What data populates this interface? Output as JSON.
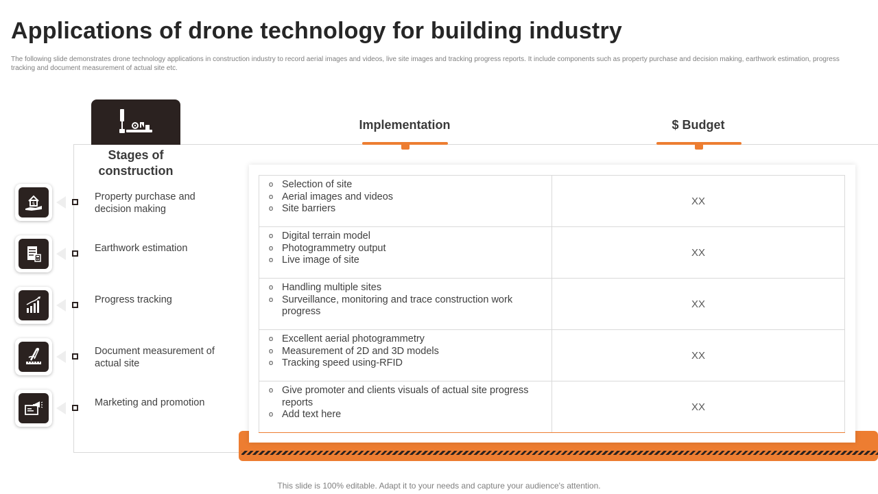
{
  "title": "Applications of drone technology for building industry",
  "subtitle": "The following slide demonstrates drone technology applications in  construction industry to record aerial images and videos, live site images and tracking progress reports. It include components such as property purchase and decision making,  earthwork estimation,  progress tracking and document measurement  of actual site etc.",
  "stages_header": {
    "title": "Stages of construction",
    "icon": "construction-tools-icon"
  },
  "columns": {
    "implementation": "Implementation",
    "budget": "$ Budget"
  },
  "stages": [
    {
      "label": "Property purchase and decision making",
      "icon": "house-in-hand-icon"
    },
    {
      "label": "Earthwork estimation",
      "icon": "document-calculator-icon"
    },
    {
      "label": "Progress tracking",
      "icon": "bar-chart-growth-icon"
    },
    {
      "label": "Document measurement of actual site",
      "icon": "compass-ruler-icon"
    },
    {
      "label": "Marketing and promotion",
      "icon": "megaphone-board-icon"
    }
  ],
  "rows": [
    {
      "items": [
        "Selection of site",
        "Aerial images and videos",
        "Site barriers"
      ],
      "budget": "XX"
    },
    {
      "items": [
        "Digital terrain model",
        "Photogrammetry output",
        "Live image of site"
      ],
      "budget": "XX"
    },
    {
      "items": [
        "Handling multiple sites",
        "Surveillance, monitoring and trace construction work progress"
      ],
      "budget": "XX"
    },
    {
      "items": [
        "Excellent aerial photogrammetry",
        "Measurement of 2D and 3D models",
        "Tracking speed using-RFID"
      ],
      "budget": "XX"
    },
    {
      "items": [
        "Give promoter and clients visuals of actual site progress reports",
        "Add text here"
      ],
      "budget": "XX"
    }
  ],
  "footer": "This slide is 100% editable. Adapt it to your needs and capture your audience's attention.",
  "colors": {
    "accent": "#ed7d31",
    "dark": "#2b2220"
  }
}
